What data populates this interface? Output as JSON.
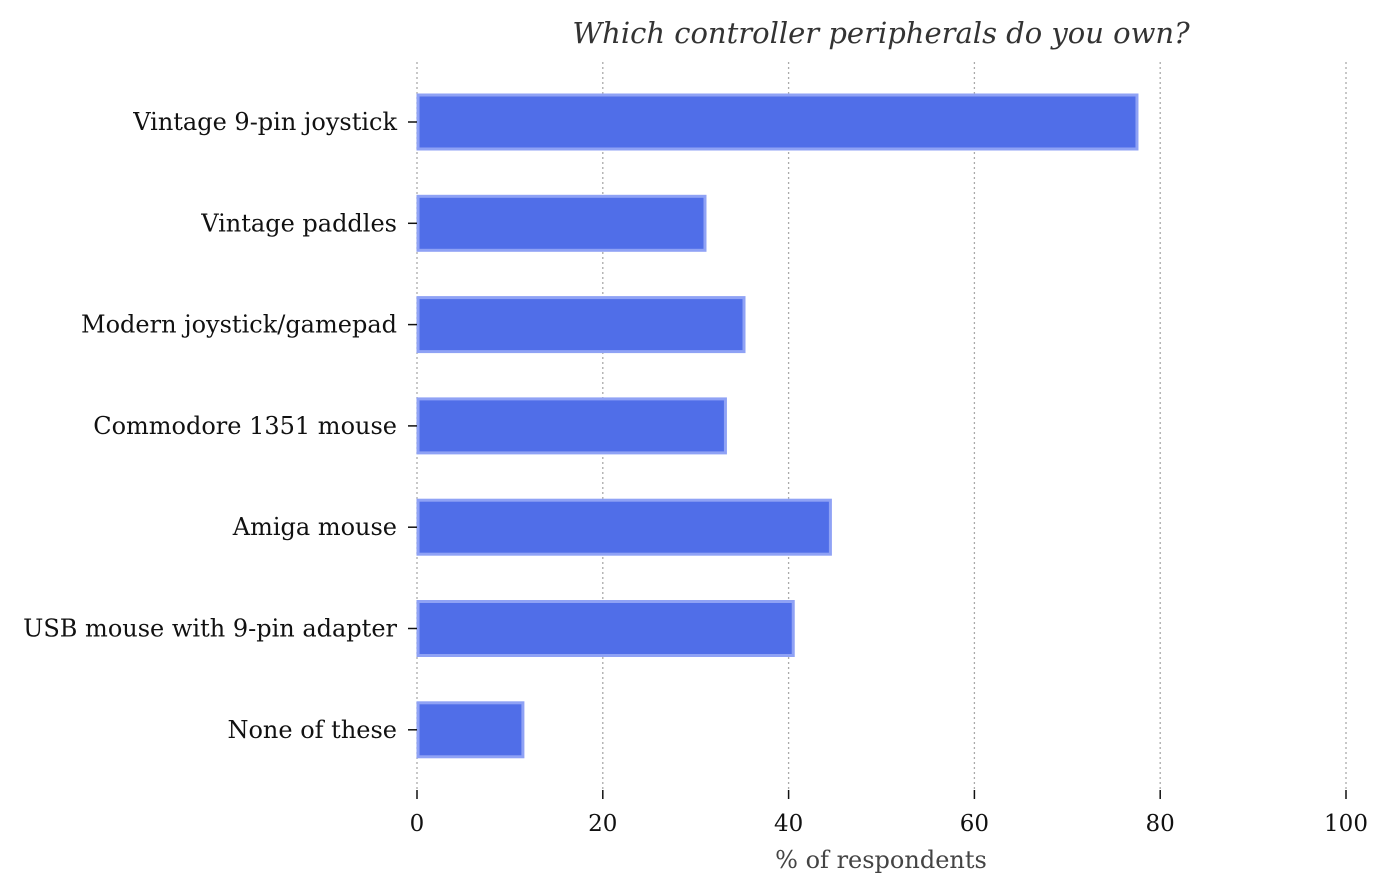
{
  "chart_data": {
    "type": "bar",
    "orientation": "horizontal",
    "title": "Which controller peripherals do you own?",
    "xlabel": "% of respondents",
    "ylabel": "",
    "categories": [
      "Vintage 9-pin joystick",
      "Vintage paddles",
      "Modern joystick/gamepad",
      "Commodore 1351 mouse",
      "Amiga mouse",
      "USB mouse with 9-pin adapter",
      "None of these"
    ],
    "values": [
      77.5,
      31,
      35.2,
      33.2,
      44.5,
      40.5,
      11.4
    ],
    "xlim": [
      0,
      100
    ],
    "xticks": [
      "0",
      "20",
      "40",
      "60",
      "80",
      "100"
    ],
    "grid": "vertical dotted",
    "legend": "none",
    "colors": {
      "bar_fill": "#506ee8",
      "bar_edge": "#8fa2f5"
    }
  }
}
